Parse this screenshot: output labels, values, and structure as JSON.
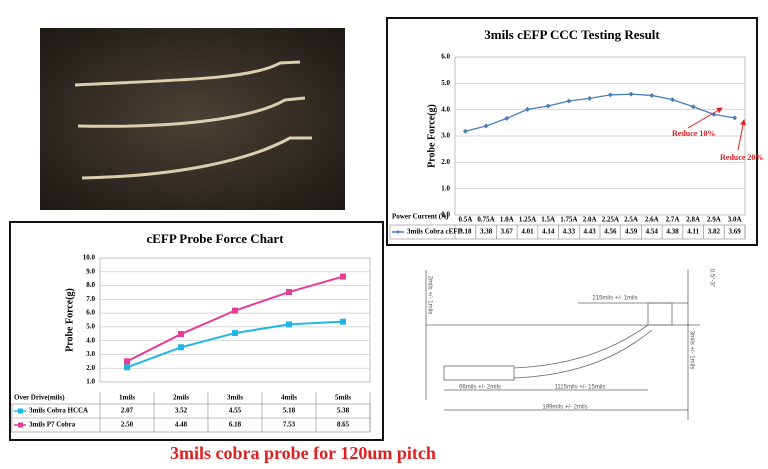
{
  "chart_data": [
    {
      "type": "line",
      "title": "3mils cEFP CCC Testing Result",
      "y_label": "Probe Force(g)",
      "x_label": "Power Current (A)",
      "categories": [
        "0.5A",
        "0.75A",
        "1.0A",
        "1.25A",
        "1.5A",
        "1.75A",
        "2.0A",
        "2.25A",
        "2.5A",
        "2.6A",
        "2.7A",
        "2.8A",
        "2.9A",
        "3.0A"
      ],
      "series": [
        {
          "name": "3mils Cobra cEFP",
          "color": "#4a7ebb",
          "values": [
            3.18,
            3.38,
            3.67,
            4.01,
            4.14,
            4.33,
            4.43,
            4.56,
            4.59,
            4.54,
            4.38,
            4.11,
            3.82,
            3.69
          ]
        }
      ],
      "ylim": [
        0,
        6
      ],
      "yticks": [
        {
          "value": 0,
          "label": "0.0"
        },
        {
          "value": 1,
          "label": "1.0"
        },
        {
          "value": 2,
          "label": "2.0"
        },
        {
          "value": 3,
          "label": "3.0"
        },
        {
          "value": 4,
          "label": "4.0"
        },
        {
          "value": 5,
          "label": "5.0"
        },
        {
          "value": 6,
          "label": "6.0"
        }
      ],
      "grid": true,
      "annotations": [
        "Reduce 10%",
        "Reduce 20%"
      ]
    },
    {
      "type": "line",
      "title": "cEFP Probe Force Chart",
      "y_label": "Probe Force(g)",
      "x_label": "Over Drive(mils)",
      "categories": [
        "1mils",
        "2mils",
        "3mils",
        "4mils",
        "5mils"
      ],
      "series": [
        {
          "name": "3mils Cobra HCCA",
          "color": "#1fb5e6",
          "values": [
            2.07,
            3.52,
            4.55,
            5.18,
            5.38
          ]
        },
        {
          "name": "3mils P7 Cobra",
          "color": "#e63c96",
          "values": [
            2.5,
            4.48,
            6.18,
            7.53,
            8.65
          ],
          "value_labels": [
            "2.50",
            "4.48",
            "6.18",
            "7.53",
            "8.65"
          ]
        }
      ],
      "ylim": [
        1,
        10
      ],
      "yticks": [
        {
          "value": 1,
          "label": "1.0"
        },
        {
          "value": 2,
          "label": "2.0"
        },
        {
          "value": 3,
          "label": "3.0"
        },
        {
          "value": 4,
          "label": "4.0"
        },
        {
          "value": 5,
          "label": "5.0"
        },
        {
          "value": 6,
          "label": "6.0"
        },
        {
          "value": 7,
          "label": "7.0"
        },
        {
          "value": 8,
          "label": "8.0"
        },
        {
          "value": 9,
          "label": "9.0"
        },
        {
          "value": 10,
          "label": "10.0"
        }
      ],
      "grid": true
    }
  ],
  "drawing": {
    "labels": [
      "2mils +/- 1mils",
      "215mils +/- 1mils",
      "66mils +/- 2mils",
      "1115mils +/- 15mils",
      "199mils +/- 2mils",
      "3mils +/- 1mils",
      "0.5°-3°"
    ]
  },
  "caption": "3mils cobra probe for 120um pitch"
}
